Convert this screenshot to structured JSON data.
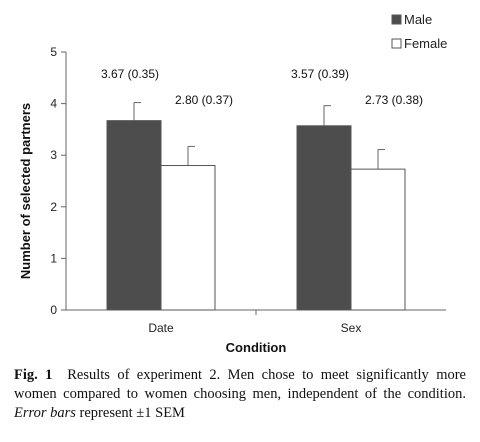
{
  "chart_data": {
    "type": "bar",
    "categories": [
      "Date",
      "Sex"
    ],
    "series": [
      {
        "name": "Male",
        "values": [
          3.67,
          3.57
        ],
        "errors": [
          0.35,
          0.39
        ],
        "labels": [
          "3.67 (0.35)",
          "3.57 (0.39)"
        ],
        "color": "#4d4d4d"
      },
      {
        "name": "Female",
        "values": [
          2.8,
          2.73
        ],
        "errors": [
          0.37,
          0.38
        ],
        "labels": [
          "2.80 (0.37)",
          "2.73 (0.38)"
        ],
        "color": "#ffffff"
      }
    ],
    "xlabel": "Condition",
    "ylabel": "Number of selected partners",
    "ylim": [
      0,
      5
    ],
    "yticks": [
      0,
      1,
      2,
      3,
      4,
      5
    ],
    "legend_position": "top-right",
    "grid": false
  },
  "caption": {
    "label": "Fig. 1",
    "text_1": "Results of experiment 2. Men chose to meet significantly more women compared to women choosing men, independent of the condition.",
    "emph": "Error bars",
    "text_2": "represent ±1 SEM"
  }
}
